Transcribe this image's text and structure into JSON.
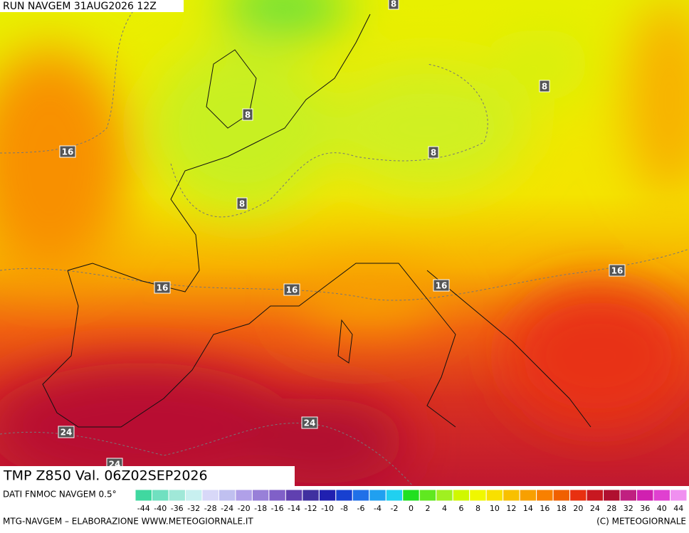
{
  "header": {
    "title": "RUN NAVGEM 31AUG2026 12Z"
  },
  "contour_labels": [
    8,
    8,
    8,
    8,
    8,
    16,
    16,
    16,
    16,
    16,
    24,
    24,
    24
  ],
  "footer": {
    "product": "TMP Z850 Val. 06Z02SEP2026",
    "source": "DATI FNMOC NAVGEM 0.5°",
    "credit_left": "MTG-NAVGEM – ELABORAZIONE WWW.METEOGIORNALE.IT",
    "credit_right": "(C) METEOGIORNALE"
  },
  "scale": {
    "labels": [
      -44,
      -40,
      -36,
      -32,
      -28,
      -24,
      -20,
      -18,
      -16,
      -14,
      -12,
      -10,
      -8,
      -6,
      -4,
      -2,
      0,
      2,
      4,
      6,
      8,
      10,
      12,
      14,
      16,
      18,
      20,
      24,
      28,
      32,
      36,
      40,
      44
    ],
    "colors": [
      "#40d8a0",
      "#70e0c0",
      "#a0e8d8",
      "#c8f0f0",
      "#d8d8f8",
      "#c0c0f0",
      "#b0a0e8",
      "#9880d8",
      "#8060c8",
      "#6040b0",
      "#4030a0",
      "#2020b0",
      "#1840d0",
      "#2070e8",
      "#20a0f0",
      "#20d0f0",
      "#20e020",
      "#60e820",
      "#a0f020",
      "#d0f800",
      "#f0f800",
      "#f8e000",
      "#f8c000",
      "#f8a000",
      "#f88000",
      "#f06000",
      "#e83010",
      "#c81820",
      "#b01030",
      "#c02080",
      "#d020b0",
      "#e040d0",
      "#f090f0"
    ]
  }
}
